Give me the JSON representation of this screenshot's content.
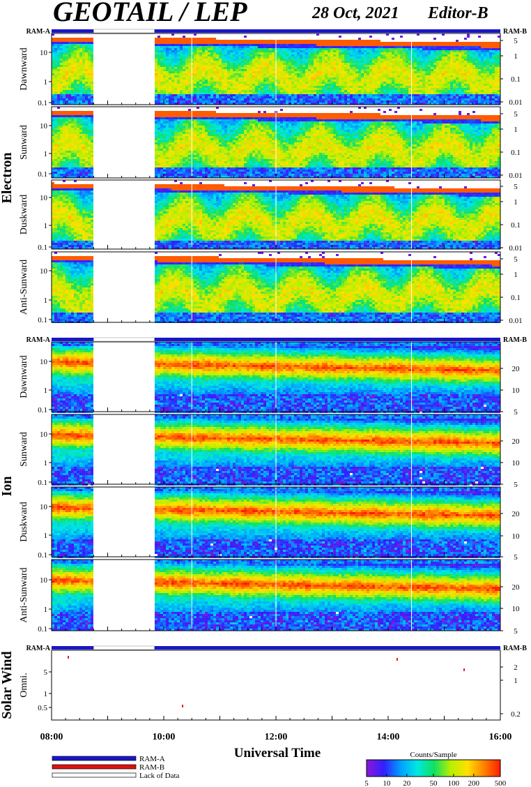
{
  "header": {
    "title": "GEOTAIL / LEP",
    "date": "28 Oct, 2021",
    "editor": "Editor-B"
  },
  "ram_a": "RAM-A",
  "ram_b": "RAM-B",
  "chart_data": {
    "type": "heatmap",
    "x_axis": {
      "label": "Universal Time",
      "ticks": [
        "08:00",
        "10:00",
        "12:00",
        "14:00",
        "16:00"
      ],
      "range": [
        "08:00",
        "16:00"
      ]
    },
    "data_gap": [
      "08:45",
      "09:50"
    ],
    "white_lines_ut": [
      "10:30",
      "12:00",
      "14:25"
    ],
    "groups": [
      {
        "name": "Electron",
        "panels": [
          {
            "label": "Dawnward"
          },
          {
            "label": "Sunward"
          },
          {
            "label": "Duskward"
          },
          {
            "label": "Anti-Sunward"
          }
        ],
        "left_ticks": [
          "0.1",
          "1",
          "10"
        ],
        "right_ticks": [
          "0.01",
          "0.1",
          "1",
          "5"
        ]
      },
      {
        "name": "Ion",
        "panels": [
          {
            "label": "Dawnward"
          },
          {
            "label": "Sunward"
          },
          {
            "label": "Duskward"
          },
          {
            "label": "Anti-Sunward"
          }
        ],
        "left_ticks": [
          "0.1",
          "1",
          "10"
        ],
        "right_ticks": [
          "5",
          "10",
          "20"
        ]
      },
      {
        "name": "Solar Wind",
        "panels": [
          {
            "label": "Omni."
          }
        ],
        "left_ticks": [
          "0.5",
          "1",
          "5"
        ],
        "right_ticks": [
          "0.2",
          "1",
          "2"
        ]
      }
    ],
    "legend": {
      "items": [
        "RAM-A",
        "RAM-B",
        "Lack of Data"
      ],
      "colors": [
        "#1a16c8",
        "#e01010",
        "#ffffff"
      ]
    },
    "colorbar": {
      "title": "Counts/Sample",
      "ticks": [
        "5",
        "10",
        "20",
        "50",
        "100",
        "200",
        "500"
      ],
      "colors": [
        "#8a18d8",
        "#3020ff",
        "#00a0ff",
        "#00e8e0",
        "#10e060",
        "#b8f000",
        "#ffe000",
        "#ff8000",
        "#ff1800"
      ]
    }
  }
}
